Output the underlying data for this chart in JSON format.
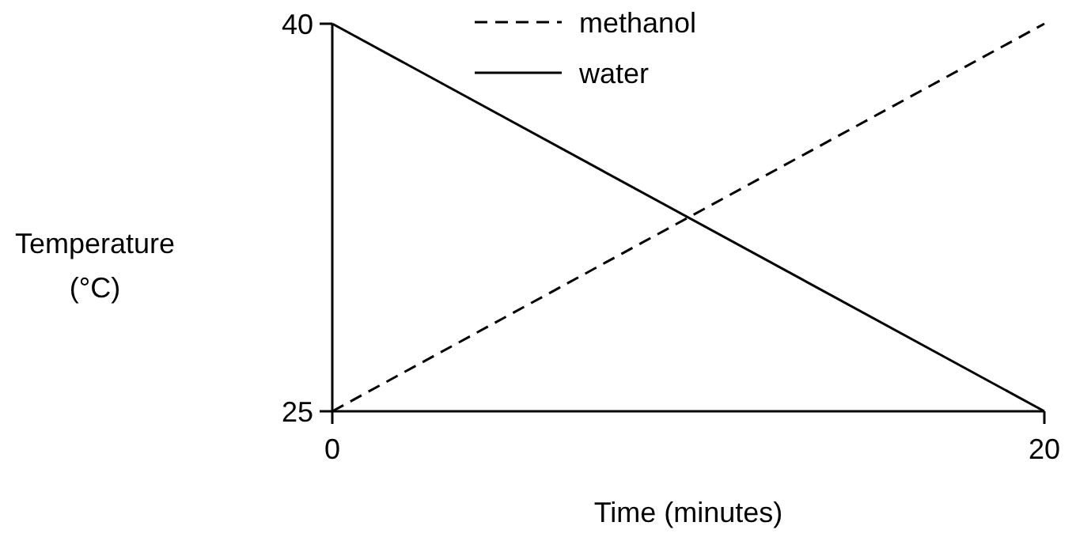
{
  "chart_data": {
    "type": "line",
    "xlabel": "Time (minutes)",
    "ylabel": "Temperature (°C)",
    "x": [
      0,
      20
    ],
    "xlim": [
      0,
      20
    ],
    "xticks": [
      0,
      20
    ],
    "ylim": [
      25,
      40
    ],
    "yticks": [
      25,
      40
    ],
    "series": [
      {
        "name": "methanol",
        "color": "#000000",
        "values": [
          25,
          40
        ],
        "line_style": "dashed"
      },
      {
        "name": "water",
        "color": "#000000",
        "values": [
          40,
          25
        ],
        "line_style": "solid"
      }
    ],
    "legend": "top",
    "grid": false,
    "marker": "none"
  }
}
